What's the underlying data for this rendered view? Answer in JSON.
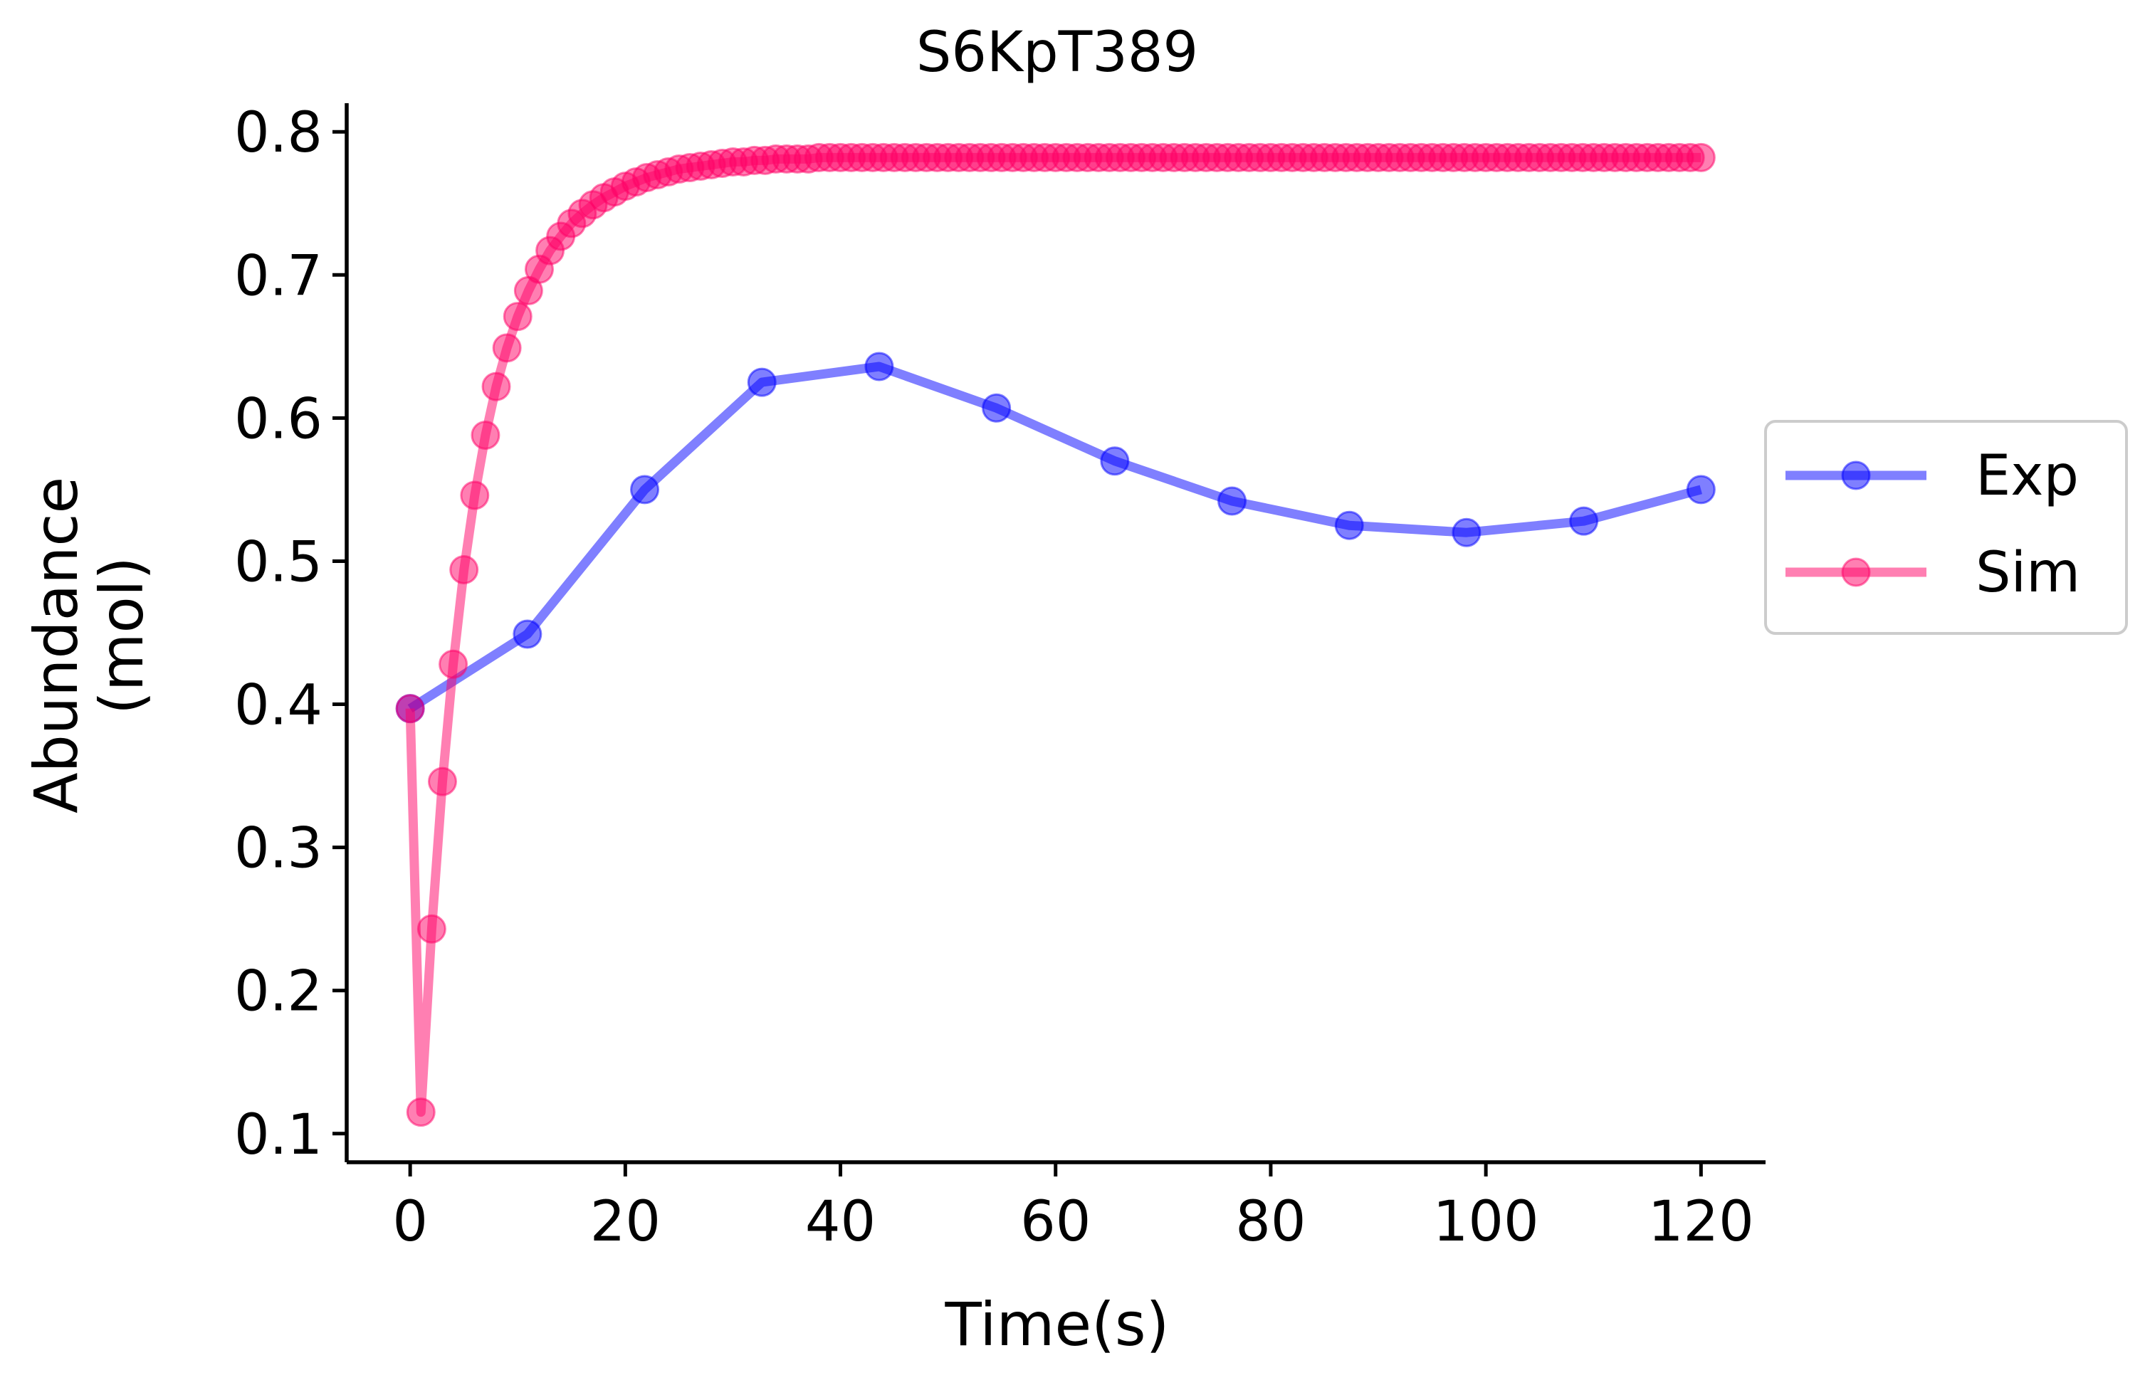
{
  "chart_data": {
    "type": "line",
    "title": "S6KpT389",
    "xlabel": "Time(s)",
    "ylabel_lines": [
      "Abundance",
      "(mol)"
    ],
    "xlim": [
      -5.9,
      126
    ],
    "ylim": [
      0.08,
      0.82
    ],
    "xticks": [
      0,
      20,
      40,
      60,
      80,
      100,
      120
    ],
    "yticks": [
      0.1,
      0.2,
      0.3,
      0.4,
      0.5,
      0.6,
      0.7,
      0.8
    ],
    "xtick_labels": [
      "0",
      "20",
      "40",
      "60",
      "80",
      "100",
      "120"
    ],
    "ytick_labels": [
      "0.1",
      "0.2",
      "0.3",
      "0.4",
      "0.5",
      "0.6",
      "0.7",
      "0.8"
    ],
    "grid": false,
    "legend_position": "center-right outside",
    "series": [
      {
        "name": "Exp",
        "color": "#0000ff",
        "x": [
          0,
          10.9,
          21.8,
          32.7,
          43.6,
          54.5,
          65.5,
          76.4,
          87.3,
          98.2,
          109.1,
          120
        ],
        "y": [
          0.397,
          0.449,
          0.55,
          0.625,
          0.636,
          0.607,
          0.57,
          0.542,
          0.525,
          0.52,
          0.528,
          0.55
        ]
      },
      {
        "name": "Sim",
        "color": "#ff0066",
        "x": [
          0,
          1,
          2,
          3,
          4,
          5,
          6,
          7,
          8,
          9,
          10,
          11,
          12,
          13,
          14,
          15,
          16,
          17,
          18,
          19,
          20,
          21,
          22,
          23,
          24,
          25,
          26,
          27,
          28,
          29,
          30,
          31,
          32,
          33,
          34,
          35,
          36,
          37,
          38,
          39,
          40,
          41,
          42,
          43,
          44,
          45,
          46,
          47,
          48,
          49,
          50,
          51,
          52,
          53,
          54,
          55,
          56,
          57,
          58,
          59,
          60,
          61,
          62,
          63,
          64,
          65,
          66,
          67,
          68,
          69,
          70,
          71,
          72,
          73,
          74,
          75,
          76,
          77,
          78,
          79,
          80,
          81,
          82,
          83,
          84,
          85,
          86,
          87,
          88,
          89,
          90,
          91,
          92,
          93,
          94,
          95,
          96,
          97,
          98,
          99,
          100,
          101,
          102,
          103,
          104,
          105,
          106,
          107,
          108,
          109,
          110,
          111,
          112,
          113,
          114,
          115,
          116,
          117,
          118,
          119,
          120
        ],
        "y": [
          0.397,
          0.115,
          0.243,
          0.346,
          0.428,
          0.494,
          0.546,
          0.588,
          0.622,
          0.649,
          0.671,
          0.689,
          0.704,
          0.717,
          0.727,
          0.736,
          0.743,
          0.749,
          0.754,
          0.758,
          0.762,
          0.765,
          0.768,
          0.77,
          0.772,
          0.774,
          0.775,
          0.776,
          0.777,
          0.778,
          0.779,
          0.779,
          0.78,
          0.78,
          0.781,
          0.781,
          0.781,
          0.781,
          0.782,
          0.782,
          0.782,
          0.782,
          0.782,
          0.782,
          0.782,
          0.782,
          0.782,
          0.782,
          0.782,
          0.782,
          0.782,
          0.782,
          0.782,
          0.782,
          0.782,
          0.782,
          0.782,
          0.782,
          0.782,
          0.782,
          0.782,
          0.782,
          0.782,
          0.782,
          0.782,
          0.782,
          0.782,
          0.782,
          0.782,
          0.782,
          0.782,
          0.782,
          0.782,
          0.782,
          0.782,
          0.782,
          0.782,
          0.782,
          0.782,
          0.782,
          0.782,
          0.782,
          0.782,
          0.782,
          0.782,
          0.782,
          0.782,
          0.782,
          0.782,
          0.782,
          0.782,
          0.782,
          0.782,
          0.782,
          0.782,
          0.782,
          0.782,
          0.782,
          0.782,
          0.782,
          0.782,
          0.782,
          0.782,
          0.782,
          0.782,
          0.782,
          0.782,
          0.782,
          0.782,
          0.782,
          0.782,
          0.782,
          0.782,
          0.782,
          0.782,
          0.782,
          0.782,
          0.782,
          0.782,
          0.782,
          0.782
        ]
      }
    ]
  }
}
